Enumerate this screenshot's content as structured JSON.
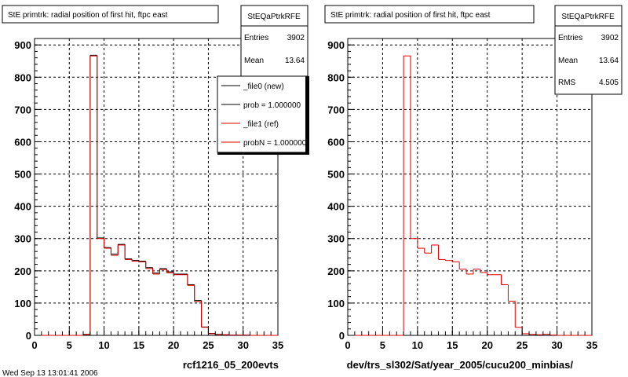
{
  "chart_data": [
    {
      "type": "bar",
      "title": "StE primtrk: radial position of first hit, ftpc east",
      "xlabel": "rcf1216_05_200evts",
      "ylabel": "",
      "xlim": [
        0,
        35
      ],
      "ylim": [
        0,
        920
      ],
      "x_ticks": [
        "0",
        "5",
        "10",
        "15",
        "20",
        "25",
        "30",
        "35"
      ],
      "y_ticks": [
        "0",
        "100",
        "200",
        "300",
        "400",
        "500",
        "600",
        "700",
        "800",
        "900"
      ],
      "grid": true,
      "bin_edges": [
        0,
        1,
        2,
        3,
        4,
        5,
        6,
        7,
        8,
        9,
        10,
        11,
        12,
        13,
        14,
        15,
        16,
        17,
        18,
        19,
        20,
        21,
        22,
        23,
        24,
        25,
        26,
        27,
        28,
        29,
        30,
        31,
        32,
        33,
        34,
        35
      ],
      "series": [
        {
          "name": "_file0 (new)",
          "color": "#000000",
          "values": [
            0,
            0,
            0,
            0,
            0,
            0,
            0,
            3,
            868,
            302,
            272,
            252,
            282,
            237,
            232,
            230,
            210,
            193,
            207,
            197,
            190,
            190,
            157,
            108,
            26,
            6,
            3,
            2,
            1,
            1,
            1,
            0,
            0,
            0,
            0
          ]
        },
        {
          "name": "_file1 (ref)",
          "color": "#e00000",
          "values": [
            0,
            0,
            0,
            0,
            0,
            0,
            0,
            3,
            866,
            300,
            270,
            248,
            280,
            235,
            230,
            228,
            207,
            190,
            204,
            194,
            188,
            188,
            155,
            105,
            25,
            5,
            2,
            2,
            1,
            1,
            1,
            0,
            0,
            0,
            0
          ]
        }
      ],
      "stats_box": {
        "name": "StEQaPtrkRFE",
        "entries_label": "Entries",
        "entries": "3902",
        "mean_label": "Mean",
        "mean": "13.64"
      },
      "legend": {
        "placement": "top-right",
        "items": [
          {
            "label": "_file0 (new)",
            "color": "#000000"
          },
          {
            "label": "prob = 1.000000",
            "color": "#000000"
          },
          {
            "label": "_file1 (ref)",
            "color": "#e00000"
          },
          {
            "label": "probN = 1.000000",
            "color": "#e00000"
          }
        ]
      },
      "footer": "Wed Sep 13 13:01:41 2006"
    },
    {
      "type": "bar",
      "title": "StE primtrk: radial position of first hit, ftpc east",
      "xlabel": "dev/trs_sl302/Sat/year_2005/cucu200_minbias/",
      "ylabel": "",
      "xlim": [
        0,
        35
      ],
      "ylim": [
        0,
        920
      ],
      "x_ticks": [
        "0",
        "5",
        "10",
        "15",
        "20",
        "25",
        "30",
        "35"
      ],
      "y_ticks": [
        "0",
        "100",
        "200",
        "300",
        "400",
        "500",
        "600",
        "700",
        "800",
        "900"
      ],
      "grid": true,
      "bin_edges": [
        0,
        1,
        2,
        3,
        4,
        5,
        6,
        7,
        8,
        9,
        10,
        11,
        12,
        13,
        14,
        15,
        16,
        17,
        18,
        19,
        20,
        21,
        22,
        23,
        24,
        25,
        26,
        27,
        28,
        29,
        30,
        31,
        32,
        33,
        34,
        35
      ],
      "series": [
        {
          "name": "",
          "color": "#e00000",
          "values": [
            0,
            0,
            0,
            0,
            0,
            0,
            0,
            0,
            866,
            300,
            270,
            255,
            280,
            235,
            232,
            228,
            205,
            190,
            205,
            195,
            188,
            188,
            157,
            106,
            25,
            5,
            3,
            2,
            3,
            1,
            0,
            0,
            0,
            0,
            0
          ]
        }
      ],
      "stats_box": {
        "name": "StEQaPtrkRFE",
        "entries_label": "Entries",
        "entries": "3902",
        "mean_label": "Mean",
        "mean": "13.64",
        "rms_label": "RMS",
        "rms": "4.505"
      }
    }
  ]
}
